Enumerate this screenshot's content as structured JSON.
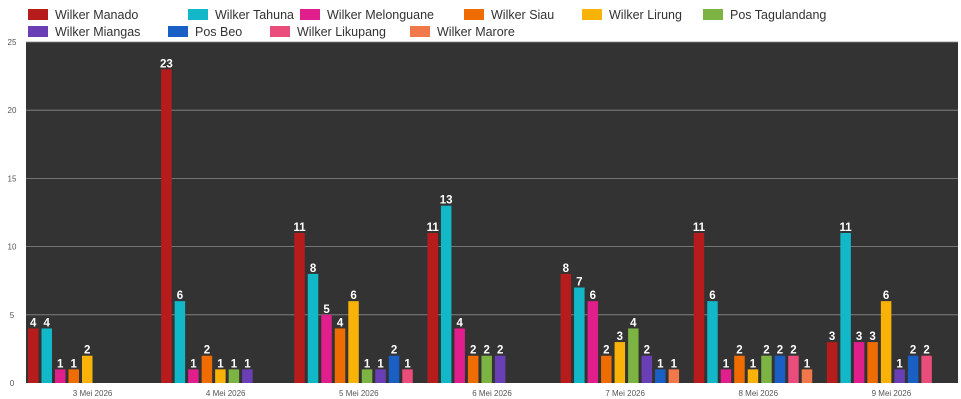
{
  "chart_data": {
    "type": "bar",
    "title": "",
    "xlabel": "",
    "ylabel": "",
    "ylim": [
      0,
      25
    ],
    "yticks": [
      "0",
      "5",
      "10",
      "15",
      "20",
      "25"
    ],
    "grid": true,
    "legend_position": "top",
    "plot_background": "#333333",
    "categories": [
      "3 Mei 2026",
      "4 Mei 2026",
      "5 Mei 2026",
      "6 Mei 2026",
      "7 Mei 2026",
      "8 Mei 2026",
      "9 Mei 2026"
    ],
    "series": [
      {
        "name": "Wilker Manado",
        "color": "#b71c1c",
        "values": [
          4,
          23,
          11,
          11,
          8,
          11,
          3
        ]
      },
      {
        "name": "Wilker Tahuna",
        "color": "#12b8c8",
        "values": [
          4,
          6,
          8,
          13,
          7,
          6,
          11
        ]
      },
      {
        "name": "Wilker Melonguane",
        "color": "#e01e8c",
        "values": [
          1,
          1,
          5,
          4,
          6,
          1,
          3
        ]
      },
      {
        "name": "Wilker Siau",
        "color": "#ef6c00",
        "values": [
          1,
          2,
          4,
          2,
          2,
          2,
          3
        ]
      },
      {
        "name": "Wilker Lirung",
        "color": "#f9b208",
        "values": [
          2,
          1,
          6,
          null,
          3,
          1,
          6
        ]
      },
      {
        "name": "Pos Tagulandang",
        "color": "#7cb342",
        "values": [
          null,
          1,
          1,
          2,
          4,
          2,
          null
        ]
      },
      {
        "name": "Wilker Miangas",
        "color": "#6a3fb5",
        "values": [
          null,
          1,
          1,
          2,
          2,
          null,
          1
        ]
      },
      {
        "name": "Pos Beo",
        "color": "#1a5fc4",
        "values": [
          null,
          null,
          2,
          null,
          1,
          2,
          2
        ]
      },
      {
        "name": "Wilker Likupang",
        "color": "#ea4c7c",
        "values": [
          null,
          null,
          1,
          null,
          null,
          2,
          2
        ]
      },
      {
        "name": "Wilker Marore",
        "color": "#f0784a",
        "values": [
          null,
          null,
          null,
          null,
          1,
          1,
          null
        ]
      }
    ]
  }
}
